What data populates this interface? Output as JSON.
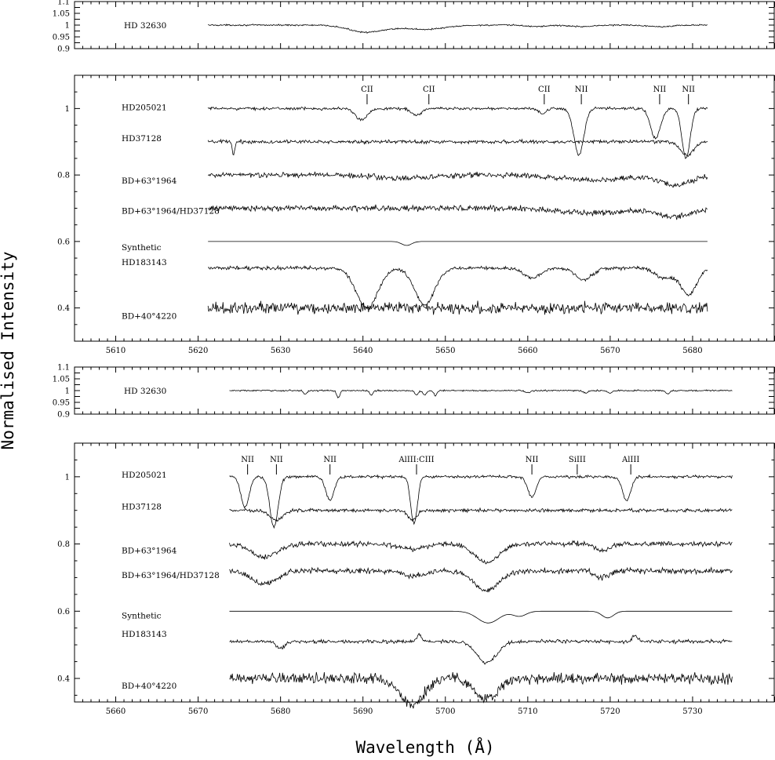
{
  "figure": {
    "xlabel": "Wavelength (Å)",
    "ylabel": "Normalised Intensity"
  },
  "chart_data": [
    {
      "type": "line",
      "panel": "ref-top",
      "xlim": [
        5605,
        5690
      ],
      "ylim": [
        0.9,
        1.1
      ],
      "x_ticks": [],
      "y_ticks": [
        "1.1",
        "1.05",
        "1",
        "0.95",
        "0.9"
      ],
      "series": [
        {
          "name": "HD 32630",
          "x_range": [
            5621.2,
            5681.8
          ],
          "offset": 1.0,
          "noise": 0.003,
          "features": [
            [
              5640.5,
              0.03,
              2.2
            ],
            [
              5647.5,
              0.018,
              2.5
            ],
            [
              5661,
              0.006,
              1.2
            ],
            [
              5666.5,
              0.006,
              1.5
            ],
            [
              5676,
              0.006,
              1.5
            ]
          ]
        }
      ]
    },
    {
      "type": "line",
      "panel": "main-top",
      "xlim": [
        5605,
        5690
      ],
      "ylim": [
        0.3,
        1.1
      ],
      "x_ticks": [
        "5610",
        "5620",
        "5630",
        "5640",
        "5650",
        "5660",
        "5670",
        "5680"
      ],
      "y_ticks": [
        "1",
        "0.8",
        "0.6",
        "0.4"
      ],
      "annotations": [
        {
          "label": "CII",
          "x": 5640.5
        },
        {
          "label": "CII",
          "x": 5648.0
        },
        {
          "label": "CII",
          "x": 5662.0
        },
        {
          "label": "NII",
          "x": 5666.5
        },
        {
          "label": "NII",
          "x": 5676.0
        },
        {
          "label": "NII",
          "x": 5679.5
        }
      ],
      "series": [
        {
          "name": "HD205021",
          "x_range": [
            5621.2,
            5681.8
          ],
          "offset": 1.0,
          "noise": 0.004,
          "features": [
            [
              5639.8,
              0.035,
              0.7
            ],
            [
              5646.5,
              0.02,
              0.6
            ],
            [
              5661.8,
              0.015,
              0.5
            ],
            [
              5666.2,
              0.14,
              0.6
            ],
            [
              5675.5,
              0.09,
              0.6
            ],
            [
              5679.2,
              0.15,
              0.5
            ]
          ]
        },
        {
          "name": "HD37128",
          "x_range": [
            5621.2,
            5681.8
          ],
          "offset": 0.9,
          "noise": 0.005,
          "features": [
            [
              5624.3,
              0.04,
              0.15
            ],
            [
              5679.3,
              0.04,
              0.8
            ]
          ]
        },
        {
          "name": "BD+63°1964",
          "x_range": [
            5621.2,
            5681.8
          ],
          "offset": 0.8,
          "noise": 0.008,
          "features": [
            [
              5645,
              0.01,
              3
            ],
            [
              5668,
              0.015,
              4
            ],
            [
              5678,
              0.03,
              2
            ]
          ]
        },
        {
          "name": "BD+63°1964/HD37128",
          "x_range": [
            5621.2,
            5681.8
          ],
          "offset": 0.7,
          "noise": 0.008,
          "features": [
            [
              5668,
              0.015,
              4
            ],
            [
              5678,
              0.025,
              2
            ]
          ]
        },
        {
          "name": "Synthetic",
          "x_range": [
            5621.2,
            5681.8
          ],
          "offset": 0.6,
          "noise": 0,
          "features": [
            [
              5645.3,
              0.012,
              0.6
            ]
          ]
        },
        {
          "name": "HD183143",
          "x_range": [
            5621.2,
            5681.8
          ],
          "offset": 0.52,
          "noise": 0.005,
          "features": [
            [
              5640.5,
              0.12,
              1.3
            ],
            [
              5647.5,
              0.11,
              1.2
            ],
            [
              5660.5,
              0.03,
              1.0
            ],
            [
              5666.8,
              0.035,
              1.0
            ],
            [
              5676.5,
              0.03,
              1.0
            ],
            [
              5679.5,
              0.08,
              1.0
            ]
          ]
        },
        {
          "name": "BD+40°4220",
          "x_range": [
            5621.2,
            5681.8
          ],
          "offset": 0.4,
          "noise": 0.016,
          "features": []
        }
      ]
    },
    {
      "type": "line",
      "panel": "ref-bottom",
      "xlim": [
        5655,
        5740
      ],
      "ylim": [
        0.9,
        1.1
      ],
      "x_ticks": [],
      "y_ticks": [
        "1.1",
        "1.05",
        "1",
        "0.95",
        "0.9"
      ],
      "series": [
        {
          "name": "HD 32630",
          "x_range": [
            5673.8,
            5734.8
          ],
          "offset": 1.0,
          "noise": 0.003,
          "features": [
            [
              5683,
              0.015,
              0.2
            ],
            [
              5687,
              0.03,
              0.2
            ],
            [
              5691,
              0.02,
              0.2
            ],
            [
              5696.5,
              0.02,
              0.2
            ],
            [
              5697.5,
              0.02,
              0.2
            ],
            [
              5698.8,
              0.02,
              0.2
            ],
            [
              5710,
              0.01,
              0.3
            ],
            [
              5717,
              0.01,
              0.3
            ],
            [
              5720,
              0.01,
              0.3
            ],
            [
              5727,
              0.015,
              0.2
            ]
          ]
        }
      ]
    },
    {
      "type": "line",
      "panel": "main-bottom",
      "xlim": [
        5655,
        5740
      ],
      "ylim": [
        0.33,
        1.1
      ],
      "x_ticks": [
        "5660",
        "5670",
        "5680",
        "5690",
        "5700",
        "5710",
        "5720",
        "5730"
      ],
      "y_ticks": [
        "1",
        "0.8",
        "0.6",
        "0.4"
      ],
      "annotations": [
        {
          "label": "NII",
          "x": 5676.0
        },
        {
          "label": "NII",
          "x": 5679.5
        },
        {
          "label": "NII",
          "x": 5686.0
        },
        {
          "label": "AlIII:CIII",
          "x": 5696.5
        },
        {
          "label": "NII",
          "x": 5710.5
        },
        {
          "label": "SiIII",
          "x": 5716.0
        },
        {
          "label": "AlIII",
          "x": 5722.5
        }
      ],
      "series": [
        {
          "name": "HD205021",
          "x_range": [
            5673.8,
            5734.8
          ],
          "offset": 1.0,
          "noise": 0.004,
          "features": [
            [
              5675.7,
              0.09,
              0.5
            ],
            [
              5679.2,
              0.15,
              0.5
            ],
            [
              5686.0,
              0.07,
              0.5
            ],
            [
              5696.2,
              0.14,
              0.4
            ],
            [
              5710.5,
              0.06,
              0.5
            ],
            [
              5722.0,
              0.07,
              0.5
            ]
          ]
        },
        {
          "name": "HD37128",
          "x_range": [
            5673.8,
            5734.8
          ],
          "offset": 0.9,
          "noise": 0.005,
          "features": [
            [
              5679.5,
              0.03,
              0.8
            ],
            [
              5696,
              0.03,
              0.5
            ]
          ]
        },
        {
          "name": "BD+63°1964",
          "x_range": [
            5673.8,
            5734.8
          ],
          "offset": 0.8,
          "noise": 0.007,
          "features": [
            [
              5678,
              0.04,
              1.5
            ],
            [
              5696,
              0.015,
              1.5
            ],
            [
              5705,
              0.055,
              1.5
            ],
            [
              5719,
              0.02,
              0.8
            ]
          ]
        },
        {
          "name": "BD+63°1964/HD37128",
          "x_range": [
            5673.8,
            5734.8
          ],
          "offset": 0.72,
          "noise": 0.008,
          "features": [
            [
              5678,
              0.04,
              1.5
            ],
            [
              5696,
              0.015,
              1.5
            ],
            [
              5705,
              0.06,
              1.5
            ],
            [
              5719,
              0.02,
              0.8
            ]
          ]
        },
        {
          "name": "Synthetic",
          "x_range": [
            5673.8,
            5734.8
          ],
          "offset": 0.6,
          "noise": 0,
          "features": [
            [
              5705.2,
              0.035,
              1.3
            ],
            [
              5709.0,
              0.015,
              0.8
            ],
            [
              5719.7,
              0.02,
              0.7
            ]
          ]
        },
        {
          "name": "HD183143",
          "x_range": [
            5673.8,
            5734.8
          ],
          "offset": 0.51,
          "noise": 0.005,
          "features": [
            [
              5680,
              0.02,
              0.5
            ],
            [
              5696.8,
              -0.02,
              0.3
            ],
            [
              5705,
              0.065,
              1.2
            ],
            [
              5723,
              -0.02,
              0.3
            ]
          ]
        },
        {
          "name": "BD+40°4220",
          "x_range": [
            5673.8,
            5734.8
          ],
          "offset": 0.4,
          "noise": 0.015,
          "features": [
            [
              5696,
              0.08,
              1.4
            ],
            [
              5705,
              0.06,
              1.4
            ]
          ]
        }
      ]
    }
  ]
}
